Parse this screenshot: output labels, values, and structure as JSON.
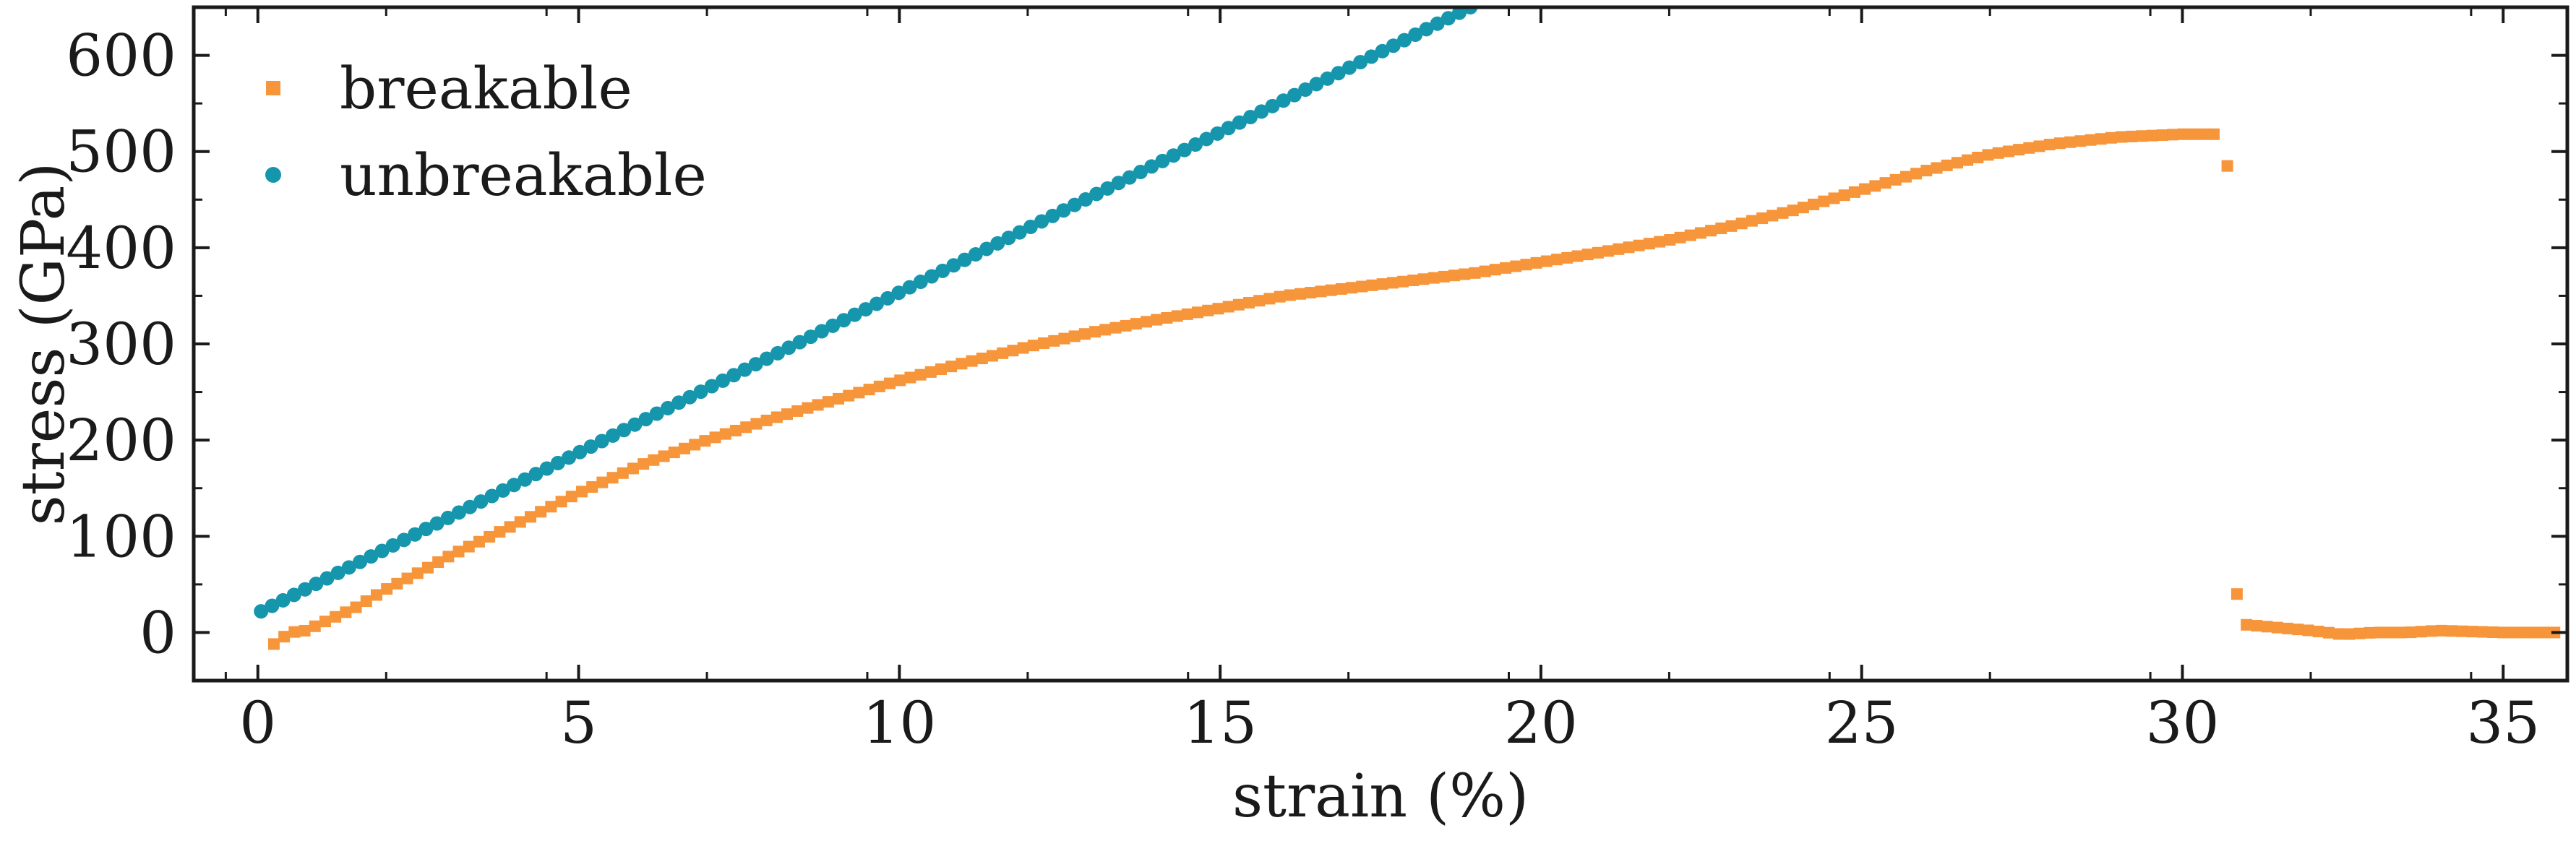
{
  "chart_data": {
    "type": "scatter",
    "xlabel": "strain (%)",
    "ylabel": "stress (GPa)",
    "xlim": [
      -1,
      36
    ],
    "ylim": [
      -50,
      650
    ],
    "xticks": [
      0,
      5,
      10,
      15,
      20,
      25,
      30,
      35
    ],
    "yticks": [
      0,
      100,
      200,
      300,
      400,
      500,
      600
    ],
    "xtick_labels": [
      "0",
      "5",
      "10",
      "15",
      "20",
      "25",
      "30",
      "35"
    ],
    "ytick_labels": [
      "0",
      "100",
      "200",
      "300",
      "400",
      "500",
      "600"
    ],
    "legend_position": "top-left",
    "grid": false,
    "series": [
      {
        "name": "breakable",
        "marker": "square",
        "color": "#f7953a",
        "x": [
          0.25,
          0.5,
          0.75,
          1.0,
          1.5,
          2.0,
          2.5,
          3.0,
          4.0,
          5.0,
          6.0,
          7.0,
          8.0,
          9.0,
          10.0,
          11.0,
          12.0,
          13.0,
          14.0,
          15.0,
          16.0,
          17.0,
          18.0,
          19.0,
          20.0,
          21.0,
          22.0,
          23.0,
          24.0,
          25.0,
          26.0,
          27.0,
          28.0,
          29.0,
          30.0,
          30.5,
          30.7,
          30.85,
          31.0,
          31.5,
          32.0,
          32.5,
          33.0,
          33.5,
          34.0,
          34.5,
          35.0,
          35.5,
          35.9
        ],
        "y": [
          -12,
          0,
          2,
          10,
          25,
          45,
          62,
          80,
          112,
          145,
          175,
          200,
          222,
          242,
          262,
          280,
          297,
          312,
          325,
          337,
          350,
          358,
          366,
          374,
          385,
          396,
          408,
          423,
          440,
          460,
          480,
          497,
          508,
          515,
          518,
          518,
          485,
          40,
          8,
          5,
          2,
          -2,
          0,
          0,
          2,
          1,
          0,
          0,
          0
        ]
      },
      {
        "name": "unbreakable",
        "marker": "circle",
        "color": "#1696ad",
        "x": [
          0.05,
          18.9
        ],
        "y": [
          22,
          650
        ]
      }
    ]
  }
}
